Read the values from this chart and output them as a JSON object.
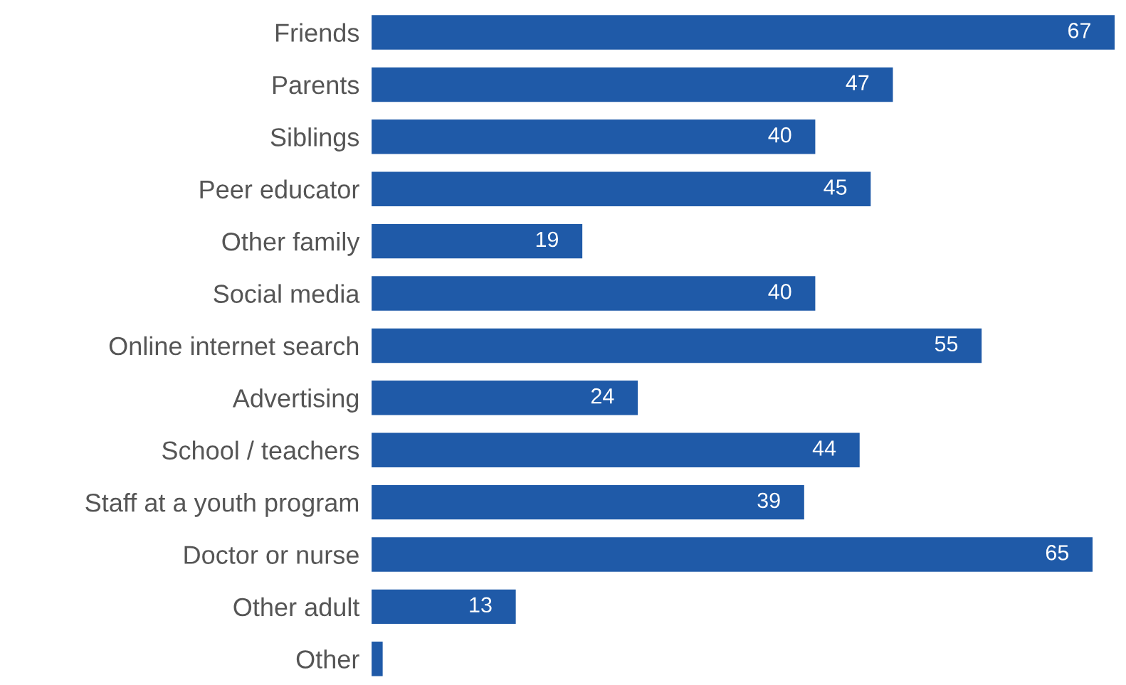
{
  "chart_data": {
    "type": "bar",
    "orientation": "horizontal",
    "categories": [
      "Friends",
      "Parents",
      "Siblings",
      "Peer educator",
      "Other family",
      "Social media",
      "Online internet search",
      "Advertising",
      "School / teachers",
      "Staff at a youth program",
      "Doctor or nurse",
      "Other adult",
      "Other"
    ],
    "values": [
      67,
      47,
      40,
      45,
      19,
      40,
      55,
      24,
      44,
      39,
      65,
      13,
      1
    ],
    "value_labels": [
      "67",
      "47",
      "40",
      "45",
      "19",
      "40",
      "55",
      "24",
      "44",
      "39",
      "65",
      "13",
      null
    ],
    "color": "#1f5aa8",
    "xlim": [
      0,
      67
    ],
    "tick_labels": "y",
    "grid": false,
    "legend": false
  }
}
